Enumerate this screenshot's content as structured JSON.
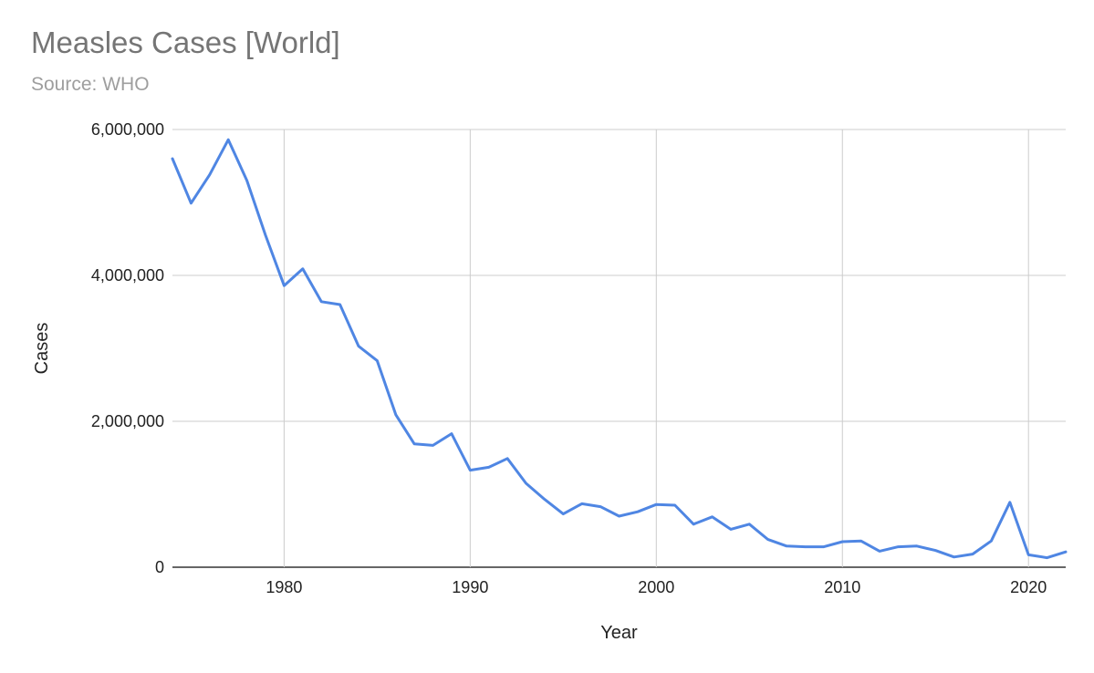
{
  "header": {
    "title": "Measles Cases [World]",
    "subtitle": "Source: WHO"
  },
  "chart_data": {
    "type": "line",
    "title": "Measles Cases [World]",
    "subtitle": "Source: WHO",
    "xlabel": "Year",
    "ylabel": "Cases",
    "xlim": [
      1974,
      2022
    ],
    "ylim": [
      0,
      6000000
    ],
    "x_ticks": [
      1980,
      1990,
      2000,
      2010,
      2020
    ],
    "y_ticks": [
      0,
      2000000,
      4000000,
      6000000
    ],
    "x_tick_labels": [
      "1980",
      "1990",
      "2000",
      "2010",
      "2020"
    ],
    "y_tick_labels": [
      "0",
      "2,000,000",
      "4,000,000",
      "6,000,000"
    ],
    "grid": true,
    "legend": "none",
    "series_color": "#4f86e3",
    "grid_color": "#cccccc",
    "x": [
      1974,
      1975,
      1976,
      1977,
      1978,
      1979,
      1980,
      1981,
      1982,
      1983,
      1984,
      1985,
      1986,
      1987,
      1988,
      1989,
      1990,
      1991,
      1992,
      1993,
      1994,
      1995,
      1996,
      1997,
      1998,
      1999,
      2000,
      2001,
      2002,
      2003,
      2004,
      2005,
      2006,
      2007,
      2008,
      2009,
      2010,
      2011,
      2012,
      2013,
      2014,
      2015,
      2016,
      2017,
      2018,
      2019,
      2020,
      2021,
      2022
    ],
    "series": [
      {
        "values": [
          5600000,
          4990000,
          5380000,
          5860000,
          5300000,
          4550000,
          3860000,
          4090000,
          3640000,
          3600000,
          3030000,
          2830000,
          2090000,
          1690000,
          1670000,
          1830000,
          1330000,
          1370000,
          1490000,
          1150000,
          930000,
          730000,
          870000,
          830000,
          700000,
          760000,
          860000,
          850000,
          590000,
          690000,
          520000,
          590000,
          380000,
          290000,
          280000,
          280000,
          350000,
          360000,
          220000,
          280000,
          290000,
          230000,
          140000,
          180000,
          360000,
          890000,
          170000,
          130000,
          210000
        ]
      }
    ]
  }
}
